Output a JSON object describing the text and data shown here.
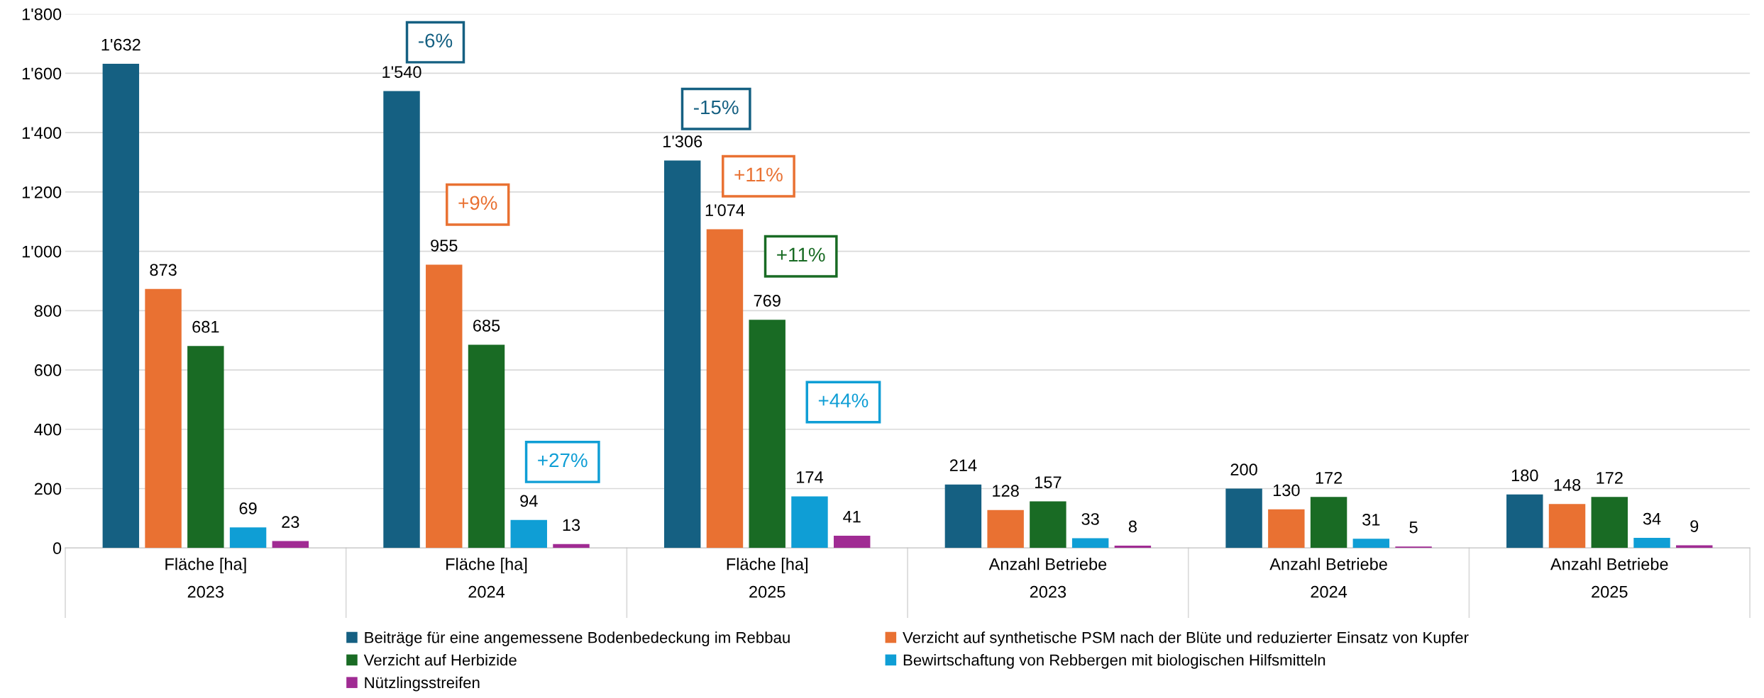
{
  "chart_data": {
    "type": "bar",
    "categories": [
      "Fläche [ha]\n2023",
      "Fläche [ha]\n2024",
      "Fläche [ha]\n2025",
      "Anzahl Betriebe\n2023",
      "Anzahl Betriebe\n2024",
      "Anzahl Betriebe\n2025"
    ],
    "series": [
      {
        "name": "Beiträge für eine angemessene Bodenbedeckung im Rebbau",
        "color": "#156082",
        "values": [
          1632,
          1540,
          1306,
          214,
          200,
          180
        ],
        "value_labels": [
          "1'632",
          "1'540",
          "1'306",
          "214",
          "200",
          "180"
        ]
      },
      {
        "name": "Verzicht auf synthetische PSM nach der Blüte und reduzierter Einsatz von Kupfer",
        "color": "#e97132",
        "values": [
          873,
          955,
          1074,
          128,
          130,
          148
        ],
        "value_labels": [
          "873",
          "955",
          "1'074",
          "128",
          "130",
          "148"
        ]
      },
      {
        "name": "Verzicht auf Herbizide",
        "color": "#196b24",
        "values": [
          681,
          685,
          769,
          157,
          172,
          172
        ],
        "value_labels": [
          "681",
          "685",
          "769",
          "157",
          "172",
          "172"
        ]
      },
      {
        "name": "Bewirtschaftung von Rebbergen mit biologischen Hilfsmitteln",
        "color": "#0f9ed5",
        "values": [
          69,
          94,
          174,
          33,
          31,
          34
        ],
        "value_labels": [
          "69",
          "94",
          "174",
          "33",
          "31",
          "34"
        ]
      },
      {
        "name": "Nützlingsstreifen",
        "color": "#a02b93",
        "values": [
          23,
          13,
          41,
          8,
          5,
          9
        ],
        "value_labels": [
          "23",
          "13",
          "41",
          "8",
          "5",
          "9"
        ]
      }
    ],
    "annotations": [
      "-6%",
      "-15%",
      "+9%",
      "+11%",
      "+11%",
      "+27%",
      "+44%"
    ],
    "ylim": [
      0,
      1800
    ],
    "yticks": [
      0,
      200,
      400,
      600,
      800,
      {
        "value": 1000,
        "label": "1'000"
      },
      {
        "value": 1200,
        "label": "1'200"
      },
      {
        "value": 1400,
        "label": "1'400"
      },
      {
        "value": 1600,
        "label": "1'600"
      },
      {
        "value": 1800,
        "label": "1'800"
      }
    ],
    "grid": "y",
    "legend": "bottom"
  }
}
